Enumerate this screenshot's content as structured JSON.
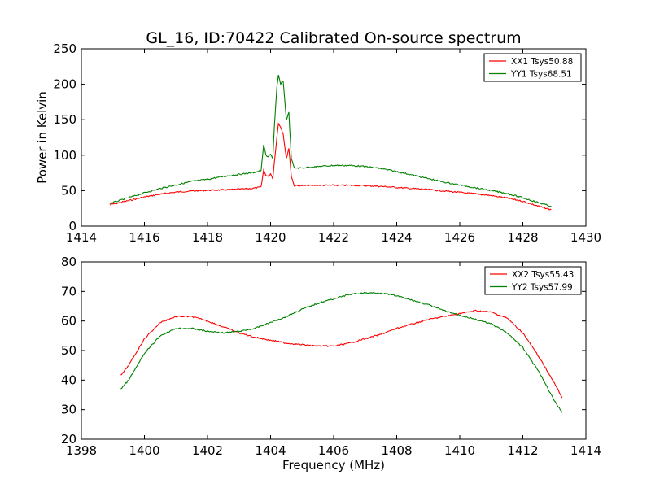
{
  "figure": {
    "title": "GL_16, ID:70422 Calibrated On-source spectrum",
    "xlabel": "Frequency (MHz)"
  },
  "chart_data": [
    {
      "type": "line",
      "title": "GL_16, ID:70422 Calibrated On-source spectrum",
      "xlabel": "",
      "ylabel": "Power in Kelvin",
      "xlim": [
        1414,
        1430
      ],
      "ylim": [
        0,
        250
      ],
      "xticks": [
        1414,
        1416,
        1418,
        1420,
        1422,
        1424,
        1426,
        1428,
        1430
      ],
      "yticks": [
        0,
        50,
        100,
        150,
        200,
        250
      ],
      "legend": "top-right",
      "grid": false,
      "series": [
        {
          "name": "XX1 Tsys50.88",
          "color": "#ff0000",
          "points": [
            [
              1414.9,
              30
            ],
            [
              1415.5,
              36
            ],
            [
              1416,
              41
            ],
            [
              1416.5,
              45
            ],
            [
              1417,
              48
            ],
            [
              1417.5,
              49.5
            ],
            [
              1418,
              50.5
            ],
            [
              1418.5,
              51
            ],
            [
              1419,
              52
            ],
            [
              1419.4,
              53
            ],
            [
              1419.7,
              55
            ],
            [
              1419.78,
              79
            ],
            [
              1419.85,
              72
            ],
            [
              1419.92,
              70
            ],
            [
              1420.0,
              74
            ],
            [
              1420.07,
              67
            ],
            [
              1420.12,
              90
            ],
            [
              1420.2,
              125
            ],
            [
              1420.25,
              145
            ],
            [
              1420.32,
              140
            ],
            [
              1420.4,
              130
            ],
            [
              1420.5,
              95
            ],
            [
              1420.58,
              110
            ],
            [
              1420.66,
              70
            ],
            [
              1420.75,
              57
            ],
            [
              1421,
              57
            ],
            [
              1421.5,
              57.5
            ],
            [
              1422,
              57.5
            ],
            [
              1422.5,
              57.5
            ],
            [
              1423,
              57
            ],
            [
              1423.5,
              56
            ],
            [
              1424,
              54.5
            ],
            [
              1424.5,
              53
            ],
            [
              1425,
              51.5
            ],
            [
              1425.5,
              49.5
            ],
            [
              1426,
              47.5
            ],
            [
              1426.5,
              45.5
            ],
            [
              1427,
              43
            ],
            [
              1427.5,
              39.5
            ],
            [
              1428,
              35
            ],
            [
              1428.5,
              28
            ],
            [
              1428.9,
              23
            ]
          ]
        },
        {
          "name": "YY1 Tsys68.51",
          "color": "#008000",
          "points": [
            [
              1414.9,
              32
            ],
            [
              1415.5,
              40
            ],
            [
              1416,
              47
            ],
            [
              1416.5,
              53
            ],
            [
              1417,
              58
            ],
            [
              1417.5,
              63
            ],
            [
              1418,
              66
            ],
            [
              1418.5,
              70
            ],
            [
              1419,
              73
            ],
            [
              1419.4,
              75
            ],
            [
              1419.7,
              78
            ],
            [
              1419.78,
              115
            ],
            [
              1419.85,
              100
            ],
            [
              1419.92,
              97
            ],
            [
              1420.0,
              102
            ],
            [
              1420.07,
              95
            ],
            [
              1420.12,
              140
            ],
            [
              1420.2,
              195
            ],
            [
              1420.25,
              213
            ],
            [
              1420.32,
              200
            ],
            [
              1420.4,
              205
            ],
            [
              1420.5,
              150
            ],
            [
              1420.58,
              160
            ],
            [
              1420.66,
              95
            ],
            [
              1420.75,
              82
            ],
            [
              1421,
              82
            ],
            [
              1421.5,
              84
            ],
            [
              1422,
              85.5
            ],
            [
              1422.5,
              85.5
            ],
            [
              1423,
              84
            ],
            [
              1423.5,
              81
            ],
            [
              1424,
              77
            ],
            [
              1424.5,
              72
            ],
            [
              1425,
              67
            ],
            [
              1425.5,
              62
            ],
            [
              1426,
              58
            ],
            [
              1426.5,
              54
            ],
            [
              1427,
              50
            ],
            [
              1427.5,
              46
            ],
            [
              1428,
              40
            ],
            [
              1428.5,
              33
            ],
            [
              1428.9,
              28
            ]
          ]
        }
      ]
    },
    {
      "type": "line",
      "title": "",
      "xlabel": "Frequency (MHz)",
      "ylabel": "",
      "xlim": [
        1398,
        1414
      ],
      "ylim": [
        20,
        80
      ],
      "xticks": [
        1398,
        1400,
        1402,
        1404,
        1406,
        1408,
        1410,
        1412,
        1414
      ],
      "yticks": [
        20,
        30,
        40,
        50,
        60,
        70,
        80
      ],
      "legend": "top-right",
      "grid": false,
      "series": [
        {
          "name": "XX2 Tsys55.43",
          "color": "#ff0000",
          "points": [
            [
              1399.25,
              41.5
            ],
            [
              1399.5,
              45
            ],
            [
              1400,
              54
            ],
            [
              1400.5,
              59.5
            ],
            [
              1401,
              61.5
            ],
            [
              1401.5,
              61.5
            ],
            [
              1402,
              60
            ],
            [
              1402.5,
              58
            ],
            [
              1403,
              56
            ],
            [
              1403.5,
              54.5
            ],
            [
              1404,
              53.5
            ],
            [
              1404.5,
              52.5
            ],
            [
              1405,
              52
            ],
            [
              1405.5,
              51.5
            ],
            [
              1406,
              51.5
            ],
            [
              1406.5,
              52.5
            ],
            [
              1407,
              54
            ],
            [
              1407.5,
              55.5
            ],
            [
              1408,
              57.5
            ],
            [
              1408.5,
              59
            ],
            [
              1409,
              60.5
            ],
            [
              1409.5,
              61.5
            ],
            [
              1410,
              62.5
            ],
            [
              1410.5,
              63.5
            ],
            [
              1411,
              63
            ],
            [
              1411.5,
              61
            ],
            [
              1412,
              56
            ],
            [
              1412.5,
              48
            ],
            [
              1413,
              39
            ],
            [
              1413.25,
              34
            ]
          ]
        },
        {
          "name": "YY2 Tsys57.99",
          "color": "#008000",
          "points": [
            [
              1399.25,
              37
            ],
            [
              1399.5,
              40
            ],
            [
              1400,
              49
            ],
            [
              1400.5,
              55
            ],
            [
              1401,
              57.5
            ],
            [
              1401.5,
              57.5
            ],
            [
              1402,
              56.5
            ],
            [
              1402.5,
              56
            ],
            [
              1403,
              56.5
            ],
            [
              1403.5,
              57.5
            ],
            [
              1404,
              59.5
            ],
            [
              1404.5,
              61.5
            ],
            [
              1405,
              64
            ],
            [
              1405.5,
              66
            ],
            [
              1406,
              67.5
            ],
            [
              1406.5,
              69
            ],
            [
              1407,
              69.5
            ],
            [
              1407.5,
              69.5
            ],
            [
              1408,
              68.5
            ],
            [
              1408.5,
              67
            ],
            [
              1409,
              65.5
            ],
            [
              1409.5,
              63.5
            ],
            [
              1410,
              62
            ],
            [
              1410.5,
              60.5
            ],
            [
              1411,
              59
            ],
            [
              1411.5,
              56
            ],
            [
              1412,
              51
            ],
            [
              1412.5,
              43
            ],
            [
              1413,
              33
            ],
            [
              1413.25,
              29
            ]
          ]
        }
      ]
    }
  ]
}
